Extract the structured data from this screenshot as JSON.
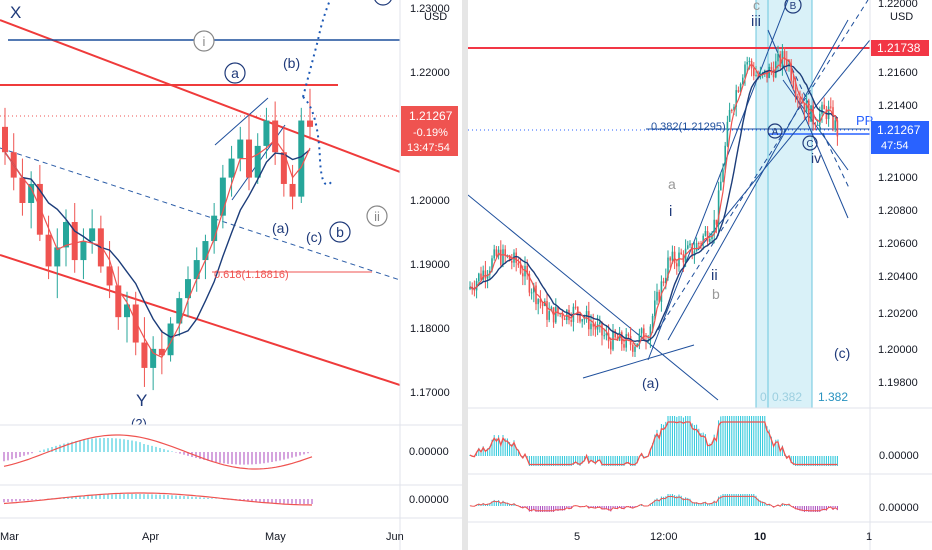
{
  "left": {
    "axis": {
      "currency": "USD",
      "price_ticks": [
        "1.23000",
        "1.22000",
        "1.21000",
        "1.20000",
        "1.19000",
        "1.18000",
        "1.17000"
      ],
      "osc_ticks": [
        "0.00000",
        "0.00000"
      ],
      "time_ticks": [
        "Mar",
        "Apr",
        "May",
        "Jun"
      ]
    },
    "badge": {
      "price": "1.21267",
      "change": "-0.19%",
      "countdown": "13:47:54",
      "color": "#ef5350"
    },
    "labels": {
      "X": "X",
      "Y": "Y",
      "Y2": "(2)",
      "a_circ": "a",
      "b_paren": "(b)",
      "i_circ": "i",
      "ii_circ": "ii",
      "a_paren": "(a)",
      "c_paren": "(c)",
      "b_circ": "b",
      "b_circ_top": "b"
    },
    "fib": {
      "label": "0.618(1.18816)"
    }
  },
  "right": {
    "axis": {
      "currency": "USD",
      "price_ticks": [
        "1.22000",
        "1.21600",
        "1.21400",
        "1.21000",
        "1.20800",
        "1.20600",
        "1.20400",
        "1.20200",
        "1.20000",
        "1.19800"
      ],
      "osc_ticks": [
        "0.00000",
        "0.00000"
      ],
      "time_ticks": [
        "5",
        "12:00",
        "10",
        "1"
      ]
    },
    "hline_badge": {
      "price": "1.21738",
      "color": "#f23645"
    },
    "badge": {
      "price": "1.21267",
      "countdown": "47:54",
      "color": "#2962ff"
    },
    "labels": {
      "iii": "iii",
      "c_top": "c",
      "B": "B",
      "A": "A",
      "C": "C",
      "iv": "iv",
      "a": "a",
      "i": "i",
      "ii": "ii",
      "b": "b",
      "a_paren": "(a)",
      "c_paren": "(c)",
      "PP": "PP"
    },
    "fib": {
      "label": "0.382(1.21295)",
      "bottom": "0.382",
      "bottom_prefix": "0",
      "bottom_right": "1.382"
    }
  },
  "chart_data": [
    {
      "type": "candlestick",
      "instrument_quote": "USD",
      "y_range": [
        1.165,
        1.232
      ],
      "x_ticks": [
        "Mar",
        "Apr",
        "May",
        "Jun"
      ],
      "last_price": 1.21267,
      "change_pct": -0.19,
      "annotations": [
        "X",
        "Y",
        "(2)",
        "a",
        "(b)",
        "i",
        "ii",
        "(a)",
        "(c)",
        "b",
        "0.618(1.18816)"
      ],
      "candles": [
        [
          1.212,
          1.215,
          1.206,
          1.208
        ],
        [
          1.208,
          1.211,
          1.202,
          1.204
        ],
        [
          1.204,
          1.207,
          1.198,
          1.2
        ],
        [
          1.2,
          1.205,
          1.196,
          1.203
        ],
        [
          1.203,
          1.206,
          1.194,
          1.195
        ],
        [
          1.195,
          1.198,
          1.188,
          1.19
        ],
        [
          1.19,
          1.196,
          1.185,
          1.193
        ],
        [
          1.193,
          1.199,
          1.19,
          1.197
        ],
        [
          1.197,
          1.2,
          1.189,
          1.191
        ],
        [
          1.191,
          1.196,
          1.188,
          1.194
        ],
        [
          1.194,
          1.199,
          1.192,
          1.196
        ],
        [
          1.196,
          1.198,
          1.189,
          1.19
        ],
        [
          1.19,
          1.194,
          1.185,
          1.187
        ],
        [
          1.187,
          1.19,
          1.18,
          1.182
        ],
        [
          1.182,
          1.186,
          1.178,
          1.184
        ],
        [
          1.184,
          1.186,
          1.176,
          1.178
        ],
        [
          1.178,
          1.182,
          1.171,
          1.174
        ],
        [
          1.174,
          1.179,
          1.1705,
          1.177
        ],
        [
          1.177,
          1.18,
          1.173,
          1.176
        ],
        [
          1.176,
          1.182,
          1.175,
          1.181
        ],
        [
          1.181,
          1.186,
          1.179,
          1.185
        ],
        [
          1.185,
          1.19,
          1.182,
          1.188
        ],
        [
          1.188,
          1.193,
          1.186,
          1.191
        ],
        [
          1.191,
          1.195,
          1.188,
          1.194
        ],
        [
          1.194,
          1.2,
          1.192,
          1.198
        ],
        [
          1.198,
          1.206,
          1.196,
          1.204
        ],
        [
          1.204,
          1.209,
          1.201,
          1.207
        ],
        [
          1.207,
          1.212,
          1.205,
          1.21
        ],
        [
          1.21,
          1.214,
          1.202,
          1.204
        ],
        [
          1.204,
          1.211,
          1.203,
          1.209
        ],
        [
          1.209,
          1.215,
          1.207,
          1.213
        ],
        [
          1.213,
          1.216,
          1.206,
          1.208
        ],
        [
          1.208,
          1.212,
          1.201,
          1.203
        ],
        [
          1.203,
          1.206,
          1.199,
          1.201
        ],
        [
          1.201,
          1.215,
          1.2,
          1.213
        ],
        [
          1.213,
          1.218,
          1.21,
          1.212
        ]
      ]
    },
    {
      "type": "candlestick",
      "instrument_quote": "USD",
      "y_range": [
        1.1965,
        1.2205
      ],
      "x_ticks": [
        "5",
        "12:00",
        "10",
        "1"
      ],
      "last_price": 1.21267,
      "horizontal_line": 1.21738,
      "fib_level": {
        "label": "0.382(1.21295)",
        "value": 1.21295
      },
      "annotations": [
        "c",
        "iii",
        "B",
        "A",
        "C",
        "iv",
        "a",
        "i",
        "ii",
        "b",
        "(a)",
        "(c)",
        "PP"
      ]
    }
  ]
}
